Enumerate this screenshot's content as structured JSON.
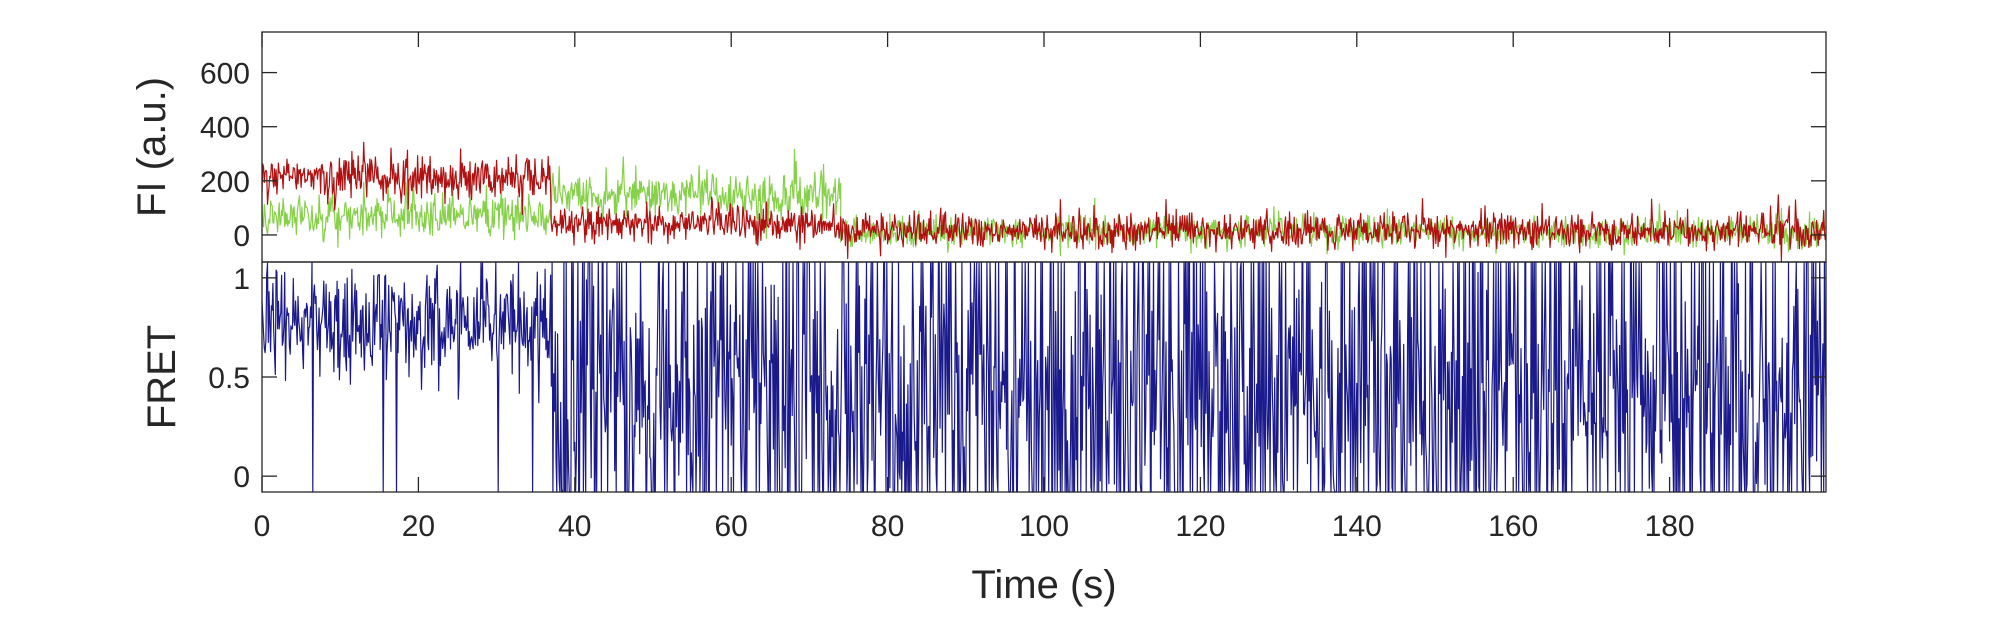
{
  "chart_data": [
    {
      "type": "line",
      "panel": "fluorescence",
      "ylabel": "FI (a.u.)",
      "xlim": [
        0,
        200
      ],
      "ylim": [
        -100,
        750
      ],
      "yticks": [
        0,
        200,
        400,
        600
      ],
      "ytick_labels": [
        "0",
        "200",
        "400",
        "600"
      ],
      "grid": false,
      "series": [
        {
          "role": "donor",
          "color": "#86d04a",
          "segments": [
            {
              "t0": 0,
              "t1": 37,
              "mean": 70,
              "noise": 55
            },
            {
              "t0": 37,
              "t1": 74,
              "mean": 145,
              "noise": 60
            },
            {
              "t0": 74,
              "t1": 200,
              "mean": 10,
              "noise": 40
            }
          ]
        },
        {
          "role": "acceptor",
          "color": "#b01010",
          "segments": [
            {
              "t0": 0,
              "t1": 37,
              "mean": 210,
              "noise": 60
            },
            {
              "t0": 37,
              "t1": 74,
              "mean": 40,
              "noise": 45
            },
            {
              "t0": 74,
              "t1": 200,
              "mean": 15,
              "noise": 45
            }
          ]
        }
      ]
    },
    {
      "type": "line",
      "panel": "fret",
      "ylabel": "FRET",
      "xlabel": "Time (s)",
      "xlim": [
        0,
        200
      ],
      "ylim": [
        -0.08,
        1.08
      ],
      "xticks": [
        0,
        20,
        40,
        60,
        80,
        100,
        120,
        140,
        160,
        180
      ],
      "xtick_labels": [
        "0",
        "20",
        "40",
        "60",
        "80",
        "100",
        "120",
        "140",
        "160",
        "180"
      ],
      "yticks": [
        0,
        0.5,
        1
      ],
      "ytick_labels": [
        "0",
        "0.5",
        "1"
      ],
      "grid": false,
      "series": [
        {
          "color": "#1a1a8c",
          "segments": [
            {
              "t0": 0,
              "t1": 37,
              "mean": 0.78,
              "noise": 0.14
            },
            {
              "t0": 37,
              "t1": 200,
              "mean": 0.45,
              "noise": 0.55
            }
          ]
        }
      ]
    }
  ]
}
